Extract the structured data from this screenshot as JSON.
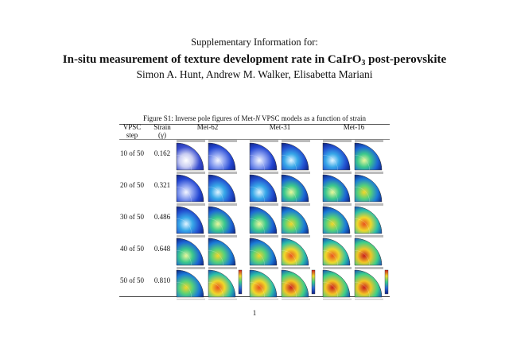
{
  "header": {
    "label": "Supplementary Information for:",
    "title": [
      "In-situ measurement of texture development rate in CaIrO",
      "3",
      " post-perovskite"
    ],
    "authors": "Simon A. Hunt, Andrew M. Walker, Elisabetta Mariani"
  },
  "figure": {
    "caption": [
      "Figure S1: Inverse pole figures of Met-",
      "N",
      " VPSC models as a function of strain"
    ]
  },
  "table": {
    "header": [
      [
        "VPSC",
        "step"
      ],
      [
        "Strain",
        "(γ)"
      ],
      "Met-62",
      "Met-31",
      "Met-16"
    ],
    "rows": [
      [
        "10 of 50",
        "0.162"
      ],
      [
        "20 of 50",
        "0.321"
      ],
      [
        "30 of 50",
        "0.486"
      ],
      [
        "40 of 50",
        "0.648"
      ],
      [
        "50 of 50",
        "0.810"
      ]
    ]
  },
  "page_number": "1"
}
